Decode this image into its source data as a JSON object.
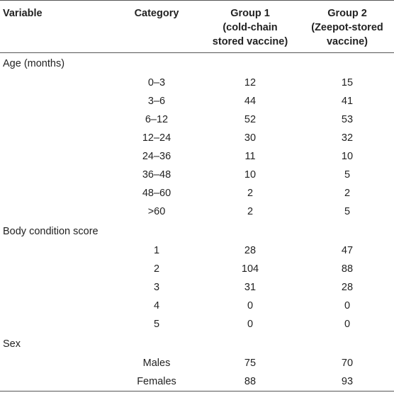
{
  "headers": {
    "variable": "Variable",
    "category": "Category",
    "group1": [
      "Group 1",
      "(cold-chain",
      "stored vaccine)"
    ],
    "group2": [
      "Group 2",
      "(Zeepot-stored",
      "vaccine)"
    ]
  },
  "sections": [
    {
      "label": "Age (months)",
      "rows": [
        {
          "category": "0–3",
          "g1": "12",
          "g2": "15"
        },
        {
          "category": "3–6",
          "g1": "44",
          "g2": "41"
        },
        {
          "category": "6–12",
          "g1": "52",
          "g2": "53"
        },
        {
          "category": "12–24",
          "g1": "30",
          "g2": "32"
        },
        {
          "category": "24–36",
          "g1": "11",
          "g2": "10"
        },
        {
          "category": "36–48",
          "g1": "10",
          "g2": "5"
        },
        {
          "category": "48–60",
          "g1": "2",
          "g2": "2"
        },
        {
          "category": ">60",
          "g1": "2",
          "g2": "5"
        }
      ]
    },
    {
      "label": "Body condition score",
      "rows": [
        {
          "category": "1",
          "g1": "28",
          "g2": "47"
        },
        {
          "category": "2",
          "g1": "104",
          "g2": "88"
        },
        {
          "category": "3",
          "g1": "31",
          "g2": "28"
        },
        {
          "category": "4",
          "g1": "0",
          "g2": "0"
        },
        {
          "category": "5",
          "g1": "0",
          "g2": "0"
        }
      ]
    },
    {
      "label": "Sex",
      "rows": [
        {
          "category": "Males",
          "g1": "75",
          "g2": "70"
        },
        {
          "category": "Females",
          "g1": "88",
          "g2": "93"
        }
      ]
    }
  ]
}
